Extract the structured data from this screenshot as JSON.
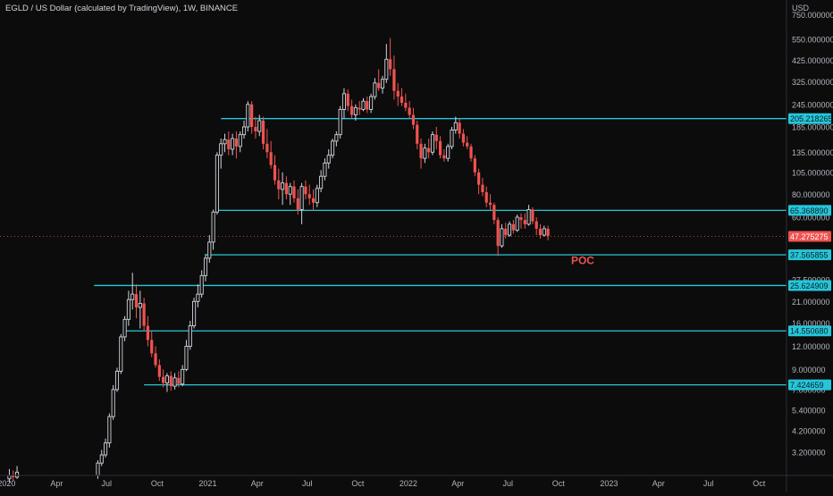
{
  "header": {
    "title": "EGLD / US Dollar (calculated by TradingView), 1W, BINANCE",
    "currency": "USD"
  },
  "colors": {
    "background": "#0c0c0c",
    "up": "#d1d4dc",
    "down": "#ef5350",
    "level_line": "#26c6da",
    "current_price": "#ef5350",
    "axis_text": "#b2b5be",
    "poc_text": "#ef5350"
  },
  "chart_data": {
    "type": "candlestick",
    "title": "EGLD / US Dollar (calculated by TradingView), 1W, BINANCE",
    "y_scale": "log",
    "y_unit": "USD",
    "ylim": [
      2.4,
      900
    ],
    "xlim": [
      "2019-12-20",
      "2023-11-20"
    ],
    "x_ticks": [
      {
        "date": "2020-01-01",
        "label": "2020"
      },
      {
        "date": "2020-04-01",
        "label": "Apr"
      },
      {
        "date": "2020-07-01",
        "label": "Jul"
      },
      {
        "date": "2020-10-01",
        "label": "Oct"
      },
      {
        "date": "2021-01-01",
        "label": "2021"
      },
      {
        "date": "2021-04-01",
        "label": "Apr"
      },
      {
        "date": "2021-07-01",
        "label": "Jul"
      },
      {
        "date": "2021-10-01",
        "label": "Oct"
      },
      {
        "date": "2022-01-01",
        "label": "2022"
      },
      {
        "date": "2022-04-01",
        "label": "Apr"
      },
      {
        "date": "2022-07-01",
        "label": "Jul"
      },
      {
        "date": "2022-10-01",
        "label": "Oct"
      },
      {
        "date": "2023-01-01",
        "label": "2023"
      },
      {
        "date": "2023-04-01",
        "label": "Apr"
      },
      {
        "date": "2023-07-01",
        "label": "Jul"
      },
      {
        "date": "2023-10-01",
        "label": "Oct"
      }
    ],
    "y_ticks": [
      {
        "value": 750,
        "label": "750.000000"
      },
      {
        "value": 550,
        "label": "550.000000"
      },
      {
        "value": 425,
        "label": "425.000000"
      },
      {
        "value": 325,
        "label": "325.000000"
      },
      {
        "value": 245,
        "label": "245.000000"
      },
      {
        "value": 185,
        "label": "185.000000"
      },
      {
        "value": 135,
        "label": "135.000000"
      },
      {
        "value": 105,
        "label": "105.000000"
      },
      {
        "value": 80,
        "label": "80.000000"
      },
      {
        "value": 60,
        "label": "60.000000"
      },
      {
        "value": 37.5,
        "label": "37.500000"
      },
      {
        "value": 27.5,
        "label": "27.500000"
      },
      {
        "value": 21,
        "label": "21.000000"
      },
      {
        "value": 16,
        "label": "16.000000"
      },
      {
        "value": 12,
        "label": "12.000000"
      },
      {
        "value": 9,
        "label": "9.000000"
      },
      {
        "value": 7,
        "label": "7.000000"
      },
      {
        "value": 5.4,
        "label": "5.400000"
      },
      {
        "value": 4.2,
        "label": "4.200000"
      },
      {
        "value": 3.2,
        "label": "3.200000"
      }
    ],
    "levels": [
      {
        "value": 205.218265,
        "label": "205.218265",
        "start": "2021-01-25"
      },
      {
        "value": 65.36889,
        "label": "65.368890",
        "start": "2021-01-18"
      },
      {
        "value": 37.565855,
        "label": "37.565855",
        "start": "2020-12-28"
      },
      {
        "value": 25.624909,
        "label": "25.624909",
        "start": "2020-06-08"
      },
      {
        "value": 14.55068,
        "label": "14.550680",
        "start": "2020-08-03"
      },
      {
        "value": 7.424659,
        "label": "7.424659",
        "start": "2020-09-07"
      }
    ],
    "current_price": {
      "value": 47.275275,
      "label": "47.275275"
    },
    "annotations": [
      {
        "text": "POC",
        "date": "2022-10-24",
        "value": 33.5
      }
    ],
    "candles": [
      {
        "t": "2020-01-06",
        "o": 2.3,
        "h": 2.6,
        "l": 2.2,
        "c": 2.4
      },
      {
        "t": "2020-01-13",
        "o": 2.4,
        "h": 2.55,
        "l": 2.25,
        "c": 2.35
      },
      {
        "t": "2020-01-20",
        "o": 2.35,
        "h": 2.7,
        "l": 2.3,
        "c": 2.5
      },
      {
        "t": "2020-06-15",
        "o": 2.4,
        "h": 2.9,
        "l": 2.3,
        "c": 2.8
      },
      {
        "t": "2020-06-22",
        "o": 2.8,
        "h": 3.3,
        "l": 2.7,
        "c": 3.1
      },
      {
        "t": "2020-06-29",
        "o": 3.1,
        "h": 3.8,
        "l": 3.0,
        "c": 3.6
      },
      {
        "t": "2020-07-06",
        "o": 3.6,
        "h": 5.2,
        "l": 3.4,
        "c": 5.0
      },
      {
        "t": "2020-07-13",
        "o": 5.0,
        "h": 7.4,
        "l": 4.8,
        "c": 7.0
      },
      {
        "t": "2020-07-20",
        "o": 7.0,
        "h": 9.2,
        "l": 6.8,
        "c": 8.8
      },
      {
        "t": "2020-07-27",
        "o": 8.8,
        "h": 14.0,
        "l": 8.5,
        "c": 13.5
      },
      {
        "t": "2020-08-03",
        "o": 13.5,
        "h": 17.5,
        "l": 12.8,
        "c": 16.8
      },
      {
        "t": "2020-08-10",
        "o": 16.8,
        "h": 24.0,
        "l": 15.5,
        "c": 21.5
      },
      {
        "t": "2020-08-17",
        "o": 21.5,
        "h": 30.0,
        "l": 19.0,
        "c": 23.0
      },
      {
        "t": "2020-08-24",
        "o": 23.0,
        "h": 26.0,
        "l": 17.0,
        "c": 19.5
      },
      {
        "t": "2020-08-31",
        "o": 19.5,
        "h": 24.0,
        "l": 15.0,
        "c": 20.5
      },
      {
        "t": "2020-09-07",
        "o": 20.5,
        "h": 22.0,
        "l": 14.5,
        "c": 15.5
      },
      {
        "t": "2020-09-14",
        "o": 15.5,
        "h": 17.5,
        "l": 12.0,
        "c": 13.0
      },
      {
        "t": "2020-09-21",
        "o": 13.0,
        "h": 14.5,
        "l": 10.5,
        "c": 11.0
      },
      {
        "t": "2020-09-28",
        "o": 11.0,
        "h": 12.0,
        "l": 9.2,
        "c": 9.5
      },
      {
        "t": "2020-10-05",
        "o": 9.5,
        "h": 10.2,
        "l": 7.8,
        "c": 8.2
      },
      {
        "t": "2020-10-12",
        "o": 8.2,
        "h": 9.0,
        "l": 7.2,
        "c": 7.6
      },
      {
        "t": "2020-10-19",
        "o": 7.6,
        "h": 8.6,
        "l": 6.8,
        "c": 8.3
      },
      {
        "t": "2020-10-26",
        "o": 8.3,
        "h": 8.8,
        "l": 6.9,
        "c": 7.3
      },
      {
        "t": "2020-11-02",
        "o": 7.3,
        "h": 8.6,
        "l": 7.0,
        "c": 8.1
      },
      {
        "t": "2020-11-09",
        "o": 8.1,
        "h": 8.8,
        "l": 7.2,
        "c": 7.5
      },
      {
        "t": "2020-11-16",
        "o": 7.5,
        "h": 9.5,
        "l": 7.3,
        "c": 9.0
      },
      {
        "t": "2020-11-23",
        "o": 9.0,
        "h": 13.0,
        "l": 8.8,
        "c": 12.0
      },
      {
        "t": "2020-11-30",
        "o": 12.0,
        "h": 16.5,
        "l": 11.5,
        "c": 15.5
      },
      {
        "t": "2020-12-07",
        "o": 15.5,
        "h": 22.0,
        "l": 15.0,
        "c": 21.0
      },
      {
        "t": "2020-12-14",
        "o": 21.0,
        "h": 26.0,
        "l": 19.5,
        "c": 23.0
      },
      {
        "t": "2020-12-21",
        "o": 23.0,
        "h": 31.0,
        "l": 22.0,
        "c": 29.0
      },
      {
        "t": "2020-12-28",
        "o": 29.0,
        "h": 38.0,
        "l": 27.0,
        "c": 36.0
      },
      {
        "t": "2021-01-04",
        "o": 36.0,
        "h": 48.0,
        "l": 34.0,
        "c": 44.0
      },
      {
        "t": "2021-01-11",
        "o": 44.0,
        "h": 66.0,
        "l": 40.0,
        "c": 64.0
      },
      {
        "t": "2021-01-18",
        "o": 64.0,
        "h": 135.0,
        "l": 62.0,
        "c": 130.0
      },
      {
        "t": "2021-01-25",
        "o": 130.0,
        "h": 160.0,
        "l": 110.0,
        "c": 150.0
      },
      {
        "t": "2021-02-01",
        "o": 150.0,
        "h": 170.0,
        "l": 135.0,
        "c": 158.0
      },
      {
        "t": "2021-02-08",
        "o": 158.0,
        "h": 175.0,
        "l": 130.0,
        "c": 140.0
      },
      {
        "t": "2021-02-15",
        "o": 140.0,
        "h": 170.0,
        "l": 130.0,
        "c": 160.0
      },
      {
        "t": "2021-02-22",
        "o": 160.0,
        "h": 175.0,
        "l": 125.0,
        "c": 145.0
      },
      {
        "t": "2021-03-01",
        "o": 145.0,
        "h": 175.0,
        "l": 135.0,
        "c": 168.0
      },
      {
        "t": "2021-03-08",
        "o": 168.0,
        "h": 200.0,
        "l": 160.0,
        "c": 185.0
      },
      {
        "t": "2021-03-15",
        "o": 185.0,
        "h": 255.0,
        "l": 175.0,
        "c": 245.0
      },
      {
        "t": "2021-03-22",
        "o": 245.0,
        "h": 255.0,
        "l": 170.0,
        "c": 185.0
      },
      {
        "t": "2021-03-29",
        "o": 185.0,
        "h": 210.0,
        "l": 160.0,
        "c": 175.0
      },
      {
        "t": "2021-04-05",
        "o": 175.0,
        "h": 215.0,
        "l": 165.0,
        "c": 200.0
      },
      {
        "t": "2021-04-12",
        "o": 200.0,
        "h": 210.0,
        "l": 140.0,
        "c": 150.0
      },
      {
        "t": "2021-04-19",
        "o": 150.0,
        "h": 180.0,
        "l": 125.0,
        "c": 135.0
      },
      {
        "t": "2021-04-26",
        "o": 135.0,
        "h": 155.0,
        "l": 110.0,
        "c": 115.0
      },
      {
        "t": "2021-05-03",
        "o": 115.0,
        "h": 130.0,
        "l": 90.0,
        "c": 95.0
      },
      {
        "t": "2021-05-10",
        "o": 95.0,
        "h": 110.0,
        "l": 75.0,
        "c": 85.0
      },
      {
        "t": "2021-05-17",
        "o": 85.0,
        "h": 105.0,
        "l": 70.0,
        "c": 92.0
      },
      {
        "t": "2021-05-24",
        "o": 92.0,
        "h": 100.0,
        "l": 75.0,
        "c": 80.0
      },
      {
        "t": "2021-05-31",
        "o": 80.0,
        "h": 92.0,
        "l": 70.0,
        "c": 88.0
      },
      {
        "t": "2021-06-07",
        "o": 88.0,
        "h": 95.0,
        "l": 72.0,
        "c": 76.0
      },
      {
        "t": "2021-06-14",
        "o": 76.0,
        "h": 85.0,
        "l": 62.0,
        "c": 66.0
      },
      {
        "t": "2021-06-21",
        "o": 66.0,
        "h": 92.0,
        "l": 55.0,
        "c": 88.0
      },
      {
        "t": "2021-06-28",
        "o": 88.0,
        "h": 95.0,
        "l": 75.0,
        "c": 80.0
      },
      {
        "t": "2021-07-05",
        "o": 80.0,
        "h": 90.0,
        "l": 70.0,
        "c": 76.0
      },
      {
        "t": "2021-07-12",
        "o": 76.0,
        "h": 85.0,
        "l": 65.0,
        "c": 72.0
      },
      {
        "t": "2021-07-19",
        "o": 72.0,
        "h": 90.0,
        "l": 68.0,
        "c": 86.0
      },
      {
        "t": "2021-07-26",
        "o": 86.0,
        "h": 108.0,
        "l": 82.0,
        "c": 100.0
      },
      {
        "t": "2021-08-02",
        "o": 100.0,
        "h": 125.0,
        "l": 95.0,
        "c": 118.0
      },
      {
        "t": "2021-08-09",
        "o": 118.0,
        "h": 140.0,
        "l": 110.0,
        "c": 130.0
      },
      {
        "t": "2021-08-16",
        "o": 130.0,
        "h": 160.0,
        "l": 125.0,
        "c": 155.0
      },
      {
        "t": "2021-08-23",
        "o": 155.0,
        "h": 175.0,
        "l": 145.0,
        "c": 168.0
      },
      {
        "t": "2021-08-30",
        "o": 168.0,
        "h": 240.0,
        "l": 160.0,
        "c": 230.0
      },
      {
        "t": "2021-09-06",
        "o": 230.0,
        "h": 300.0,
        "l": 205.0,
        "c": 280.0
      },
      {
        "t": "2021-09-13",
        "o": 280.0,
        "h": 295.0,
        "l": 225.0,
        "c": 240.0
      },
      {
        "t": "2021-09-20",
        "o": 240.0,
        "h": 260.0,
        "l": 205.0,
        "c": 215.0
      },
      {
        "t": "2021-09-27",
        "o": 215.0,
        "h": 245.0,
        "l": 200.0,
        "c": 235.0
      },
      {
        "t": "2021-10-04",
        "o": 235.0,
        "h": 255.0,
        "l": 215.0,
        "c": 230.0
      },
      {
        "t": "2021-10-11",
        "o": 230.0,
        "h": 265.0,
        "l": 225.0,
        "c": 255.0
      },
      {
        "t": "2021-10-18",
        "o": 255.0,
        "h": 270.0,
        "l": 220.0,
        "c": 230.0
      },
      {
        "t": "2021-10-25",
        "o": 230.0,
        "h": 280.0,
        "l": 220.0,
        "c": 270.0
      },
      {
        "t": "2021-11-01",
        "o": 270.0,
        "h": 340.0,
        "l": 260.0,
        "c": 320.0
      },
      {
        "t": "2021-11-08",
        "o": 320.0,
        "h": 380.0,
        "l": 290.0,
        "c": 300.0
      },
      {
        "t": "2021-11-15",
        "o": 300.0,
        "h": 350.0,
        "l": 280.0,
        "c": 335.0
      },
      {
        "t": "2021-11-22",
        "o": 335.0,
        "h": 520.0,
        "l": 320.0,
        "c": 430.0
      },
      {
        "t": "2021-11-29",
        "o": 430.0,
        "h": 560.0,
        "l": 350.0,
        "c": 380.0
      },
      {
        "t": "2021-12-06",
        "o": 380.0,
        "h": 450.0,
        "l": 260.0,
        "c": 290.0
      },
      {
        "t": "2021-12-13",
        "o": 290.0,
        "h": 320.0,
        "l": 240.0,
        "c": 270.0
      },
      {
        "t": "2021-12-20",
        "o": 270.0,
        "h": 300.0,
        "l": 240.0,
        "c": 250.0
      },
      {
        "t": "2021-12-27",
        "o": 250.0,
        "h": 280.0,
        "l": 225.0,
        "c": 235.0
      },
      {
        "t": "2022-01-03",
        "o": 235.0,
        "h": 255.0,
        "l": 205.0,
        "c": 215.0
      },
      {
        "t": "2022-01-10",
        "o": 215.0,
        "h": 235.0,
        "l": 180.0,
        "c": 190.0
      },
      {
        "t": "2022-01-17",
        "o": 190.0,
        "h": 200.0,
        "l": 140.0,
        "c": 150.0
      },
      {
        "t": "2022-01-24",
        "o": 150.0,
        "h": 160.0,
        "l": 110.0,
        "c": 125.0
      },
      {
        "t": "2022-01-31",
        "o": 125.0,
        "h": 150.0,
        "l": 118.0,
        "c": 142.0
      },
      {
        "t": "2022-02-07",
        "o": 142.0,
        "h": 160.0,
        "l": 125.0,
        "c": 135.0
      },
      {
        "t": "2022-02-14",
        "o": 135.0,
        "h": 175.0,
        "l": 130.0,
        "c": 168.0
      },
      {
        "t": "2022-02-21",
        "o": 168.0,
        "h": 185.0,
        "l": 140.0,
        "c": 155.0
      },
      {
        "t": "2022-02-28",
        "o": 155.0,
        "h": 165.0,
        "l": 125.0,
        "c": 130.0
      },
      {
        "t": "2022-03-07",
        "o": 130.0,
        "h": 140.0,
        "l": 120.0,
        "c": 125.0
      },
      {
        "t": "2022-03-14",
        "o": 125.0,
        "h": 150.0,
        "l": 120.0,
        "c": 145.0
      },
      {
        "t": "2022-03-21",
        "o": 145.0,
        "h": 185.0,
        "l": 140.0,
        "c": 178.0
      },
      {
        "t": "2022-03-28",
        "o": 178.0,
        "h": 210.0,
        "l": 170.0,
        "c": 195.0
      },
      {
        "t": "2022-04-04",
        "o": 195.0,
        "h": 205.0,
        "l": 160.0,
        "c": 170.0
      },
      {
        "t": "2022-04-11",
        "o": 170.0,
        "h": 180.0,
        "l": 145.0,
        "c": 152.0
      },
      {
        "t": "2022-04-18",
        "o": 152.0,
        "h": 165.0,
        "l": 140.0,
        "c": 145.0
      },
      {
        "t": "2022-04-25",
        "o": 145.0,
        "h": 150.0,
        "l": 120.0,
        "c": 125.0
      },
      {
        "t": "2022-05-02",
        "o": 125.0,
        "h": 130.0,
        "l": 100.0,
        "c": 105.0
      },
      {
        "t": "2022-05-09",
        "o": 105.0,
        "h": 110.0,
        "l": 80.0,
        "c": 90.0
      },
      {
        "t": "2022-05-16",
        "o": 90.0,
        "h": 98.0,
        "l": 78.0,
        "c": 82.0
      },
      {
        "t": "2022-05-23",
        "o": 82.0,
        "h": 88.0,
        "l": 68.0,
        "c": 72.0
      },
      {
        "t": "2022-05-30",
        "o": 72.0,
        "h": 80.0,
        "l": 66.0,
        "c": 70.0
      },
      {
        "t": "2022-06-06",
        "o": 70.0,
        "h": 72.0,
        "l": 55.0,
        "c": 58.0
      },
      {
        "t": "2022-06-13",
        "o": 58.0,
        "h": 60.0,
        "l": 37.0,
        "c": 42.0
      },
      {
        "t": "2022-06-20",
        "o": 42.0,
        "h": 55.0,
        "l": 41.0,
        "c": 52.0
      },
      {
        "t": "2022-06-27",
        "o": 52.0,
        "h": 56.0,
        "l": 46.0,
        "c": 48.0
      },
      {
        "t": "2022-07-04",
        "o": 48.0,
        "h": 57.0,
        "l": 47.0,
        "c": 55.0
      },
      {
        "t": "2022-07-11",
        "o": 55.0,
        "h": 58.0,
        "l": 49.0,
        "c": 51.0
      },
      {
        "t": "2022-07-18",
        "o": 51.0,
        "h": 62.0,
        "l": 50.0,
        "c": 60.0
      },
      {
        "t": "2022-07-25",
        "o": 60.0,
        "h": 63.0,
        "l": 52.0,
        "c": 58.0
      },
      {
        "t": "2022-08-01",
        "o": 58.0,
        "h": 63.0,
        "l": 52.0,
        "c": 55.0
      },
      {
        "t": "2022-08-08",
        "o": 55.0,
        "h": 70.0,
        "l": 54.0,
        "c": 66.0
      },
      {
        "t": "2022-08-15",
        "o": 66.0,
        "h": 68.0,
        "l": 55.0,
        "c": 57.0
      },
      {
        "t": "2022-08-22",
        "o": 57.0,
        "h": 60.0,
        "l": 48.0,
        "c": 52.0
      },
      {
        "t": "2022-08-29",
        "o": 52.0,
        "h": 55.0,
        "l": 46.0,
        "c": 48.0
      },
      {
        "t": "2022-09-05",
        "o": 48.0,
        "h": 54.0,
        "l": 47.0,
        "c": 52.0
      },
      {
        "t": "2022-09-12",
        "o": 52.0,
        "h": 54.0,
        "l": 45.0,
        "c": 47.5
      }
    ]
  }
}
